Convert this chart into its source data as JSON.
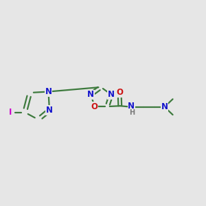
{
  "background_color": "#e6e6e6",
  "bond_color": "#3d7a3d",
  "N_color": "#1414cc",
  "O_color": "#cc1414",
  "I_color": "#cc00cc",
  "H_color": "#7a7a7a",
  "figsize": [
    3.0,
    3.0
  ],
  "dpi": 100,
  "xlim": [
    0,
    10
  ],
  "ylim": [
    0,
    10
  ],
  "lw": 1.6,
  "fs": 8.5,
  "fs_small": 7.0
}
